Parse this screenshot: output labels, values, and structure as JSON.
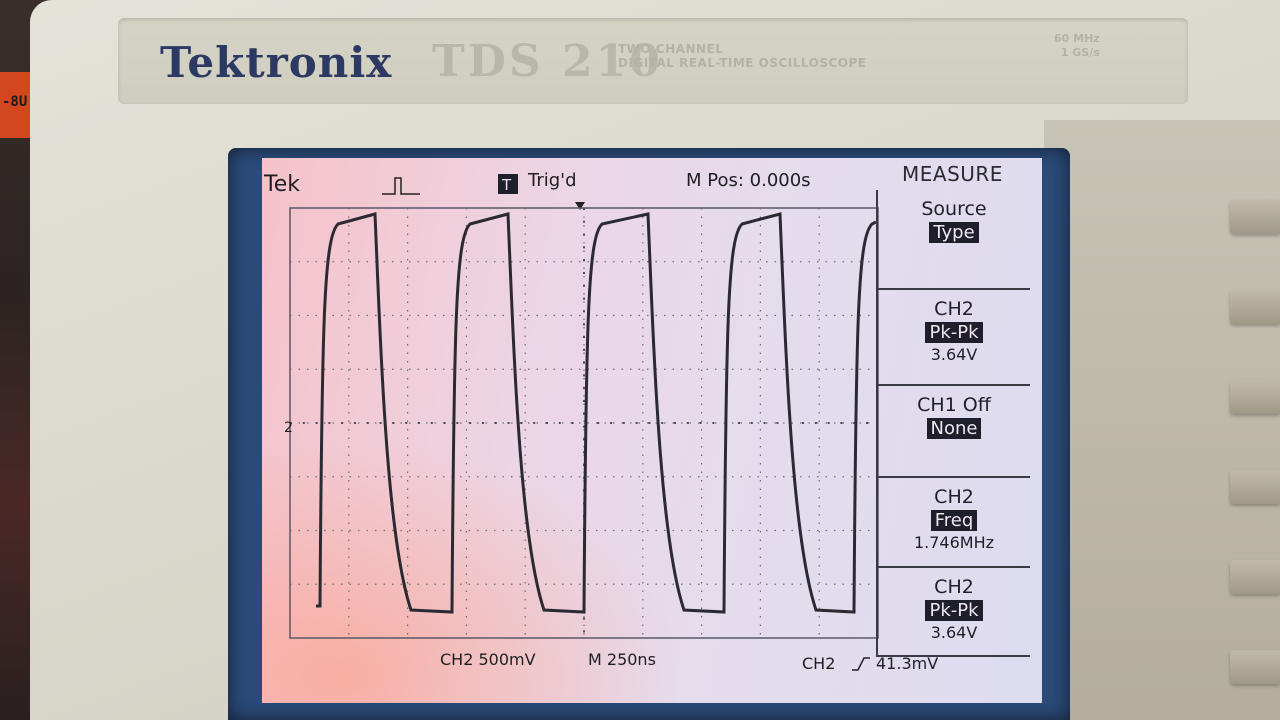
{
  "instrument": {
    "brand": "Tektronix",
    "model": "TDS 210",
    "model_sub_line1": "TWO CHANNEL",
    "model_sub_line2": "DIGITAL REAL-TIME OSCILLOSCOPE",
    "spec_line1": "60 MHz",
    "spec_line2": "1 GS/s"
  },
  "background": {
    "tag_text": "-8U"
  },
  "status_bar": {
    "logo": "Tek",
    "trigger_state": "Trig'd",
    "trigger_icon": "T",
    "mpos": "M Pos: 0.000s",
    "menu_title": "MEASURE"
  },
  "marker": {
    "ch2_ground": "2"
  },
  "measure_menu": [
    {
      "line1": "Source",
      "highlight": "Type",
      "value": ""
    },
    {
      "line1": "CH2",
      "highlight": "Pk-Pk",
      "value": "3.64V"
    },
    {
      "line1": "CH1 Off",
      "highlight": "None",
      "value": ""
    },
    {
      "line1": "CH2",
      "highlight": "Freq",
      "value": "1.746MHz"
    },
    {
      "line1": "CH2",
      "highlight": "Pk-Pk",
      "value": "3.64V"
    }
  ],
  "bottom": {
    "ch_scale": "CH2  500mV",
    "time_scale": "M 250ns",
    "trigger_info": "CH2",
    "trigger_level": "41.3mV"
  },
  "colors": {
    "trace": "#2b2a33",
    "screen_text": "#1e1e22",
    "brand_blue": "#2c3a63"
  }
}
